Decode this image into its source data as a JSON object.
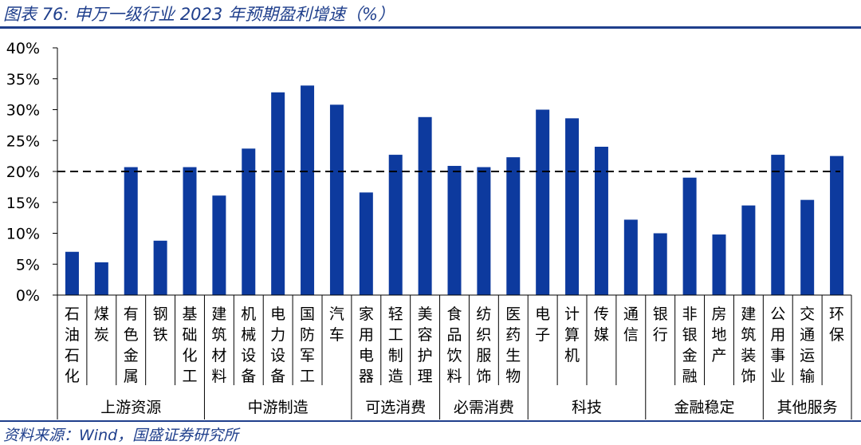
{
  "title": "图表 76:  申万一级行业 2023 年预期盈利增速（%）",
  "source": "资料来源：Wind，国盛证券研究所",
  "chart_data": {
    "type": "bar",
    "title": "申万一级行业 2023 年预期盈利增速（%）",
    "xlabel": "",
    "ylabel": "",
    "ylim": [
      0,
      40
    ],
    "yticks": [
      "0%",
      "5%",
      "10%",
      "15%",
      "20%",
      "25%",
      "30%",
      "35%",
      "40%"
    ],
    "reference_line": 20,
    "bar_color": "#0d3a9e",
    "categories": [
      "石油石化",
      "煤炭",
      "有色金属",
      "钢铁",
      "基础化工",
      "建筑材料",
      "机械设备",
      "电力设备",
      "国防军工",
      "汽车",
      "家用电器",
      "轻工制造",
      "美容护理",
      "食品饮料",
      "纺织服饰",
      "医药生物",
      "电子",
      "计算机",
      "传媒",
      "通信",
      "银行",
      "非银金融",
      "房地产",
      "建筑装饰",
      "公用事业",
      "交通运输",
      "环保"
    ],
    "values": [
      7.0,
      5.3,
      20.7,
      8.8,
      20.7,
      16.1,
      23.7,
      32.8,
      33.9,
      30.8,
      16.6,
      22.7,
      28.8,
      20.9,
      20.7,
      22.3,
      30.0,
      28.6,
      24.0,
      12.2,
      10.0,
      19.0,
      9.8,
      14.5,
      22.7,
      15.4,
      22.5
    ],
    "groups": [
      {
        "name": "上游资源",
        "start": 0,
        "end": 4
      },
      {
        "name": "中游制造",
        "start": 5,
        "end": 9
      },
      {
        "name": "可选消费",
        "start": 10,
        "end": 12
      },
      {
        "name": "必需消费",
        "start": 13,
        "end": 15
      },
      {
        "name": "科技",
        "start": 16,
        "end": 19
      },
      {
        "name": "金融稳定",
        "start": 20,
        "end": 23
      },
      {
        "name": "其他服务",
        "start": 24,
        "end": 26
      }
    ]
  }
}
